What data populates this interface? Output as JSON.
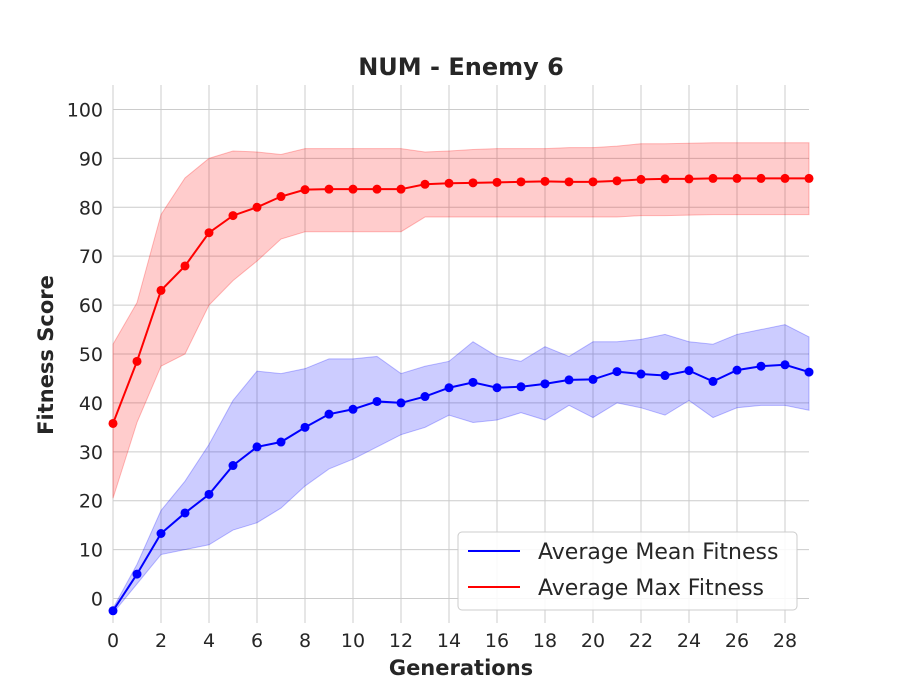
{
  "chart_data": {
    "type": "line",
    "title": "NUM - Enemy 6",
    "xlabel": "Generations",
    "ylabel": "Fitness Score",
    "xlim": [
      0,
      29
    ],
    "ylim": [
      -5,
      105
    ],
    "xticks": [
      0,
      2,
      4,
      6,
      8,
      10,
      12,
      14,
      16,
      18,
      20,
      22,
      24,
      26,
      28
    ],
    "yticks": [
      0,
      10,
      20,
      30,
      40,
      50,
      60,
      70,
      80,
      90,
      100
    ],
    "grid": true,
    "legend_position": "lower-right",
    "x": [
      0,
      1,
      2,
      3,
      4,
      5,
      6,
      7,
      8,
      9,
      10,
      11,
      12,
      13,
      14,
      15,
      16,
      17,
      18,
      19,
      20,
      21,
      22,
      23,
      24,
      25,
      26,
      27,
      28,
      29
    ],
    "series": [
      {
        "name": "Average Mean Fitness",
        "color": "#0000ff",
        "band_color": "#0000ff",
        "values": [
          -2.5,
          5.0,
          13.3,
          17.5,
          21.3,
          27.2,
          31.0,
          32.0,
          35.0,
          37.7,
          38.7,
          40.3,
          40.0,
          41.3,
          43.1,
          44.2,
          43.1,
          43.3,
          43.9,
          44.7,
          44.8,
          46.4,
          45.9,
          45.6,
          46.6,
          44.4,
          46.7,
          47.5,
          47.8,
          46.3
        ],
        "lower": [
          -3.0,
          3.0,
          9.0,
          10.0,
          11.0,
          14.0,
          15.5,
          18.5,
          23.0,
          26.5,
          28.5,
          31.0,
          33.5,
          35.0,
          37.5,
          36.0,
          36.5,
          38.0,
          36.5,
          39.5,
          37.0,
          40.0,
          39.0,
          37.5,
          40.5,
          37.0,
          39.0,
          39.5,
          39.5,
          38.5
        ],
        "upper": [
          -2.0,
          7.0,
          18.0,
          24.0,
          31.5,
          40.5,
          46.5,
          46.0,
          47.0,
          49.0,
          49.0,
          49.5,
          46.0,
          47.5,
          48.5,
          52.5,
          49.5,
          48.5,
          51.5,
          49.5,
          52.5,
          52.5,
          53.0,
          54.0,
          52.5,
          52.0,
          54.0,
          55.0,
          56.0,
          53.5
        ]
      },
      {
        "name": "Average Max Fitness",
        "color": "#ff0000",
        "band_color": "#ff0000",
        "values": [
          35.8,
          48.5,
          63.0,
          68.0,
          74.8,
          78.3,
          80.0,
          82.2,
          83.6,
          83.7,
          83.7,
          83.7,
          83.7,
          84.7,
          84.9,
          85.0,
          85.1,
          85.2,
          85.3,
          85.2,
          85.2,
          85.4,
          85.7,
          85.8,
          85.8,
          85.9,
          85.9,
          85.9,
          85.9,
          85.9
        ],
        "lower": [
          20.5,
          36.0,
          47.5,
          50.0,
          60.0,
          65.0,
          69.0,
          73.5,
          75.0,
          75.0,
          75.0,
          75.0,
          75.0,
          78.0,
          78.0,
          78.0,
          78.0,
          78.0,
          78.0,
          78.0,
          78.0,
          78.0,
          78.3,
          78.3,
          78.4,
          78.5,
          78.5,
          78.5,
          78.5,
          78.5
        ],
        "upper": [
          52.0,
          60.5,
          78.5,
          86.0,
          90.0,
          91.5,
          91.3,
          90.8,
          92.0,
          92.0,
          92.0,
          92.0,
          92.0,
          91.3,
          91.5,
          91.8,
          92.0,
          92.0,
          92.0,
          92.2,
          92.2,
          92.5,
          93.0,
          93.0,
          93.1,
          93.2,
          93.2,
          93.2,
          93.2,
          93.2
        ]
      }
    ]
  }
}
